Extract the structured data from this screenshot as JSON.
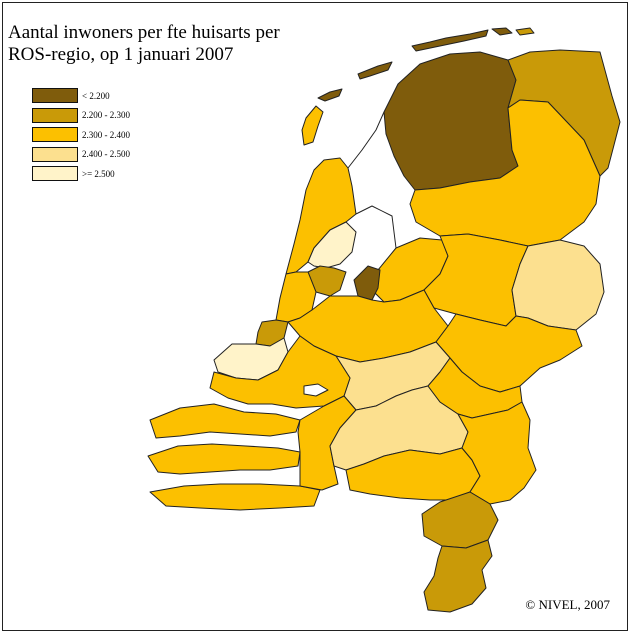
{
  "title": {
    "line1": "Aantal inwoners per fte huisarts per",
    "line2": "ROS-regio, op 1 januari 2007"
  },
  "legend": [
    {
      "label": "< 2.200",
      "color": "#7f5c0c"
    },
    {
      "label": "2.200 - 2.300",
      "color": "#c99a08"
    },
    {
      "label": "2.300 - 2.400",
      "color": "#fcc000"
    },
    {
      "label": "2.400 - 2.500",
      "color": "#fce08f"
    },
    {
      "label": ">= 2.500",
      "color": "#fff3c9"
    }
  ],
  "credit": "© NIVEL, 2007",
  "regions": [
    {
      "name": "Friesland",
      "class": "< 2.200"
    },
    {
      "name": "Groningen",
      "class": "2.200 - 2.300"
    },
    {
      "name": "Drenthe",
      "class": "2.300 - 2.400"
    },
    {
      "name": "Noord-Holland Noord",
      "class": "2.300 - 2.400"
    },
    {
      "name": "Zaanstreek",
      "class": ">= 2.500"
    },
    {
      "name": "Amsterdam",
      "class": "2.200 - 2.300"
    },
    {
      "name": "Almere",
      "class": "< 2.200"
    },
    {
      "name": "Flevoland",
      "class": "2.300 - 2.400"
    },
    {
      "name": "Overijssel Noord",
      "class": "2.300 - 2.400"
    },
    {
      "name": "Twente",
      "class": "2.400 - 2.500"
    },
    {
      "name": "Haarlem",
      "class": "2.300 - 2.400"
    },
    {
      "name": "Leiden",
      "class": "2.200 - 2.300"
    },
    {
      "name": "Den Haag",
      "class": ">= 2.500"
    },
    {
      "name": "Utrecht",
      "class": "2.300 - 2.400"
    },
    {
      "name": "Gelderland Midden",
      "class": "2.300 - 2.400"
    },
    {
      "name": "Rivierenland",
      "class": "2.400 - 2.500"
    },
    {
      "name": "Rotterdam",
      "class": "2.300 - 2.400"
    },
    {
      "name": "Zeeland",
      "class": "2.300 - 2.400"
    },
    {
      "name": "West-Brabant",
      "class": "2.300 - 2.400"
    },
    {
      "name": "Midden-Brabant",
      "class": "2.400 - 2.500"
    },
    {
      "name": "Nijmegen",
      "class": "2.300 - 2.400"
    },
    {
      "name": "Oost-Brabant",
      "class": "2.300 - 2.400"
    },
    {
      "name": "Noord-Limburg",
      "class": "2.300 - 2.400"
    },
    {
      "name": "Midden-Limburg",
      "class": "2.200 - 2.300"
    },
    {
      "name": "Zuid-Limburg",
      "class": "2.200 - 2.300"
    },
    {
      "name": "Wadden Texel",
      "class": "2.300 - 2.400"
    },
    {
      "name": "Wadden Noord",
      "class": "< 2.200"
    }
  ]
}
